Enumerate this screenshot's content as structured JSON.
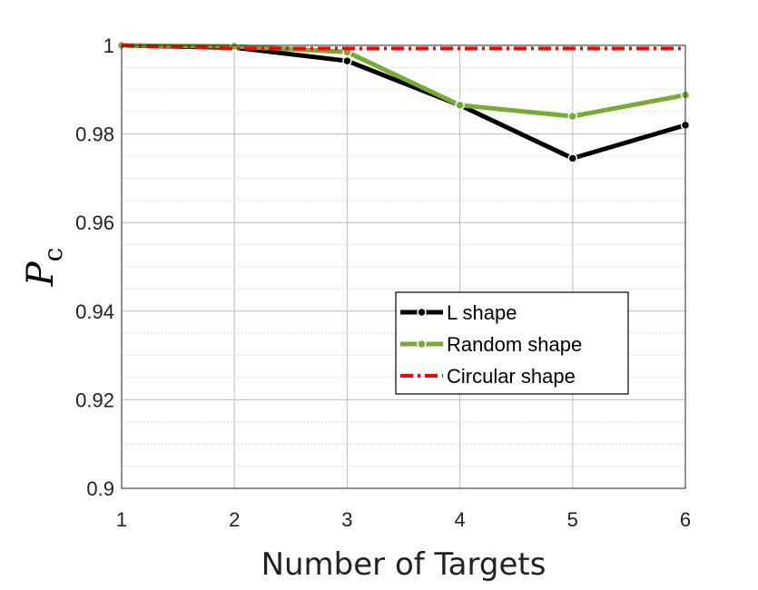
{
  "chart_data": {
    "type": "line",
    "title": "",
    "xlabel": "Number of Targets",
    "ylabel": "P",
    "ylabel_subscript": "c",
    "x": [
      1,
      2,
      3,
      4,
      5,
      6
    ],
    "xlim": [
      1,
      6
    ],
    "ylim": [
      0.9,
      1.0
    ],
    "x_ticks": [
      "1",
      "2",
      "3",
      "4",
      "5",
      "6"
    ],
    "y_ticks": [
      "0.9",
      "0.92",
      "0.94",
      "0.96",
      "0.98",
      "1"
    ],
    "grid": true,
    "minor_grid": true,
    "legend_position": "center-right",
    "series": [
      {
        "name": "L shape",
        "color": "#000000",
        "style": "solid-markers",
        "values": [
          1.0,
          0.9995,
          0.9965,
          0.9865,
          0.9745,
          0.982
        ]
      },
      {
        "name": "Random shape",
        "color": "#77ac30",
        "style": "solid-markers",
        "values": [
          1.0,
          0.9998,
          0.9985,
          0.9865,
          0.984,
          0.9888
        ]
      },
      {
        "name": "Circular shape",
        "color": "#ff0000",
        "style": "dash-dot",
        "values": [
          1.0,
          0.9993,
          0.9993,
          0.9993,
          0.9993,
          0.9993
        ]
      }
    ]
  }
}
